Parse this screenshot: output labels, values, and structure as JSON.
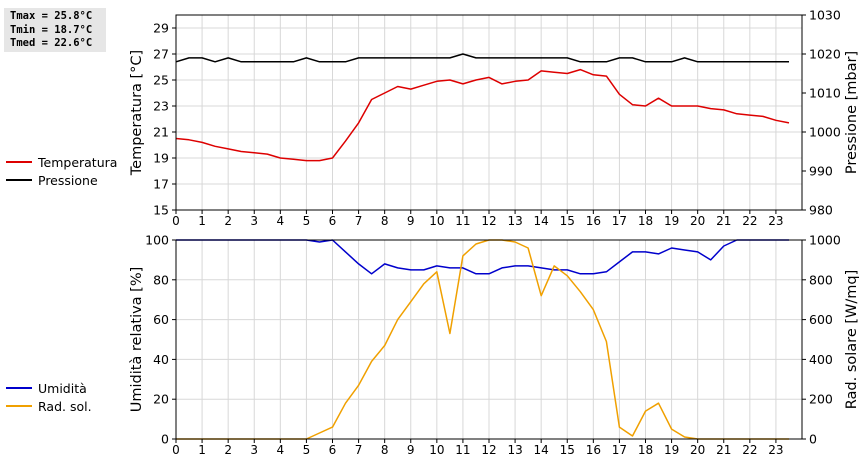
{
  "stats": {
    "tmax": "Tmax = 25.8°C",
    "tmin": "Tmin = 18.7°C",
    "tmed": "Tmed = 22.6°C"
  },
  "legend_top": [
    {
      "label": "Temperatura",
      "color": "#dd0000"
    },
    {
      "label": "Pressione",
      "color": "#000000"
    }
  ],
  "legend_bottom": [
    {
      "label": "Umidità",
      "color": "#0000cc"
    },
    {
      "label": "Rad. sol.",
      "color": "#f0a000"
    }
  ],
  "chart_data": [
    {
      "type": "line",
      "ylabel": "Temperatura [°C]",
      "ylabel_right": "Pressione [mbar]",
      "xlim": [
        0,
        24
      ],
      "ylim": [
        15,
        30
      ],
      "ylim_right": [
        980,
        1030
      ],
      "xticks": [
        0,
        1,
        2,
        3,
        4,
        5,
        6,
        7,
        8,
        9,
        10,
        11,
        12,
        13,
        14,
        15,
        16,
        17,
        18,
        19,
        20,
        21,
        22,
        23
      ],
      "yticks": [
        15,
        17,
        19,
        21,
        23,
        25,
        27,
        29
      ],
      "yticks_right": [
        980,
        990,
        1000,
        1010,
        1020,
        1030
      ],
      "grid": true,
      "series": [
        {
          "name": "Temperatura",
          "axis": "left",
          "color": "#dd0000",
          "x": [
            0,
            0.5,
            1,
            1.5,
            2,
            2.5,
            3,
            3.5,
            4,
            4.5,
            5,
            5.5,
            6,
            6.5,
            7,
            7.5,
            8,
            8.5,
            9,
            9.5,
            10,
            10.5,
            11,
            11.5,
            12,
            12.5,
            13,
            13.5,
            14,
            14.5,
            15,
            15.5,
            16,
            16.5,
            17,
            17.5,
            18,
            18.5,
            19,
            19.5,
            20,
            20.5,
            21,
            21.5,
            22,
            22.5,
            23,
            23.5
          ],
          "y": [
            20.5,
            20.4,
            20.2,
            19.9,
            19.7,
            19.5,
            19.4,
            19.3,
            19.0,
            18.9,
            18.8,
            18.8,
            19.0,
            20.3,
            21.7,
            23.5,
            24.0,
            24.5,
            24.3,
            24.6,
            24.9,
            25.0,
            24.7,
            25.0,
            25.2,
            24.7,
            24.9,
            25.0,
            25.7,
            25.6,
            25.5,
            25.8,
            25.4,
            25.3,
            23.9,
            23.1,
            23.0,
            23.6,
            23.0,
            23.0,
            23.0,
            22.8,
            22.7,
            22.4,
            22.3,
            22.2,
            21.9,
            21.7
          ]
        },
        {
          "name": "Pressione",
          "axis": "right",
          "color": "#000000",
          "x": [
            0,
            0.5,
            1,
            1.5,
            2,
            2.5,
            3,
            3.5,
            4,
            4.5,
            5,
            5.5,
            6,
            6.5,
            7,
            7.5,
            8,
            8.5,
            9,
            9.5,
            10,
            10.5,
            11,
            11.5,
            12,
            12.5,
            13,
            13.5,
            14,
            14.5,
            15,
            15.5,
            16,
            16.5,
            17,
            17.5,
            18,
            18.5,
            19,
            19.5,
            20,
            20.5,
            21,
            21.5,
            22,
            22.5,
            23,
            23.5
          ],
          "y": [
            1018,
            1019,
            1019,
            1018,
            1019,
            1018,
            1018,
            1018,
            1018,
            1018,
            1019,
            1018,
            1018,
            1018,
            1019,
            1019,
            1019,
            1019,
            1019,
            1019,
            1019,
            1019,
            1020,
            1019,
            1019,
            1019,
            1019,
            1019,
            1019,
            1019,
            1019,
            1018,
            1018,
            1018,
            1019,
            1019,
            1018,
            1018,
            1018,
            1019,
            1018,
            1018,
            1018,
            1018,
            1018,
            1018,
            1018,
            1018
          ]
        }
      ]
    },
    {
      "type": "line",
      "ylabel": "Umidità relativa [%]",
      "ylabel_right": "Rad. solare [W/mq]",
      "xlim": [
        0,
        24
      ],
      "ylim": [
        0,
        100
      ],
      "ylim_right": [
        0,
        1000
      ],
      "xticks": [
        0,
        1,
        2,
        3,
        4,
        5,
        6,
        7,
        8,
        9,
        10,
        11,
        12,
        13,
        14,
        15,
        16,
        17,
        18,
        19,
        20,
        21,
        22,
        23
      ],
      "yticks": [
        0,
        20,
        40,
        60,
        80,
        100
      ],
      "yticks_right": [
        0,
        200,
        400,
        600,
        800,
        1000
      ],
      "grid": true,
      "series": [
        {
          "name": "Umidità",
          "axis": "left",
          "color": "#0000cc",
          "x": [
            0,
            0.5,
            1,
            1.5,
            2,
            2.5,
            3,
            3.5,
            4,
            4.5,
            5,
            5.5,
            6,
            6.5,
            7,
            7.5,
            8,
            8.5,
            9,
            9.5,
            10,
            10.5,
            11,
            11.5,
            12,
            12.5,
            13,
            13.5,
            14,
            14.5,
            15,
            15.5,
            16,
            16.5,
            17,
            17.5,
            18,
            18.5,
            19,
            19.5,
            20,
            20.5,
            21,
            21.5,
            22,
            22.5,
            23,
            23.5
          ],
          "y": [
            100,
            100,
            100,
            100,
            100,
            100,
            100,
            100,
            100,
            100,
            100,
            99,
            100,
            94,
            88,
            83,
            88,
            86,
            85,
            85,
            87,
            86,
            86,
            83,
            83,
            86,
            87,
            87,
            86,
            85,
            85,
            83,
            83,
            84,
            89,
            94,
            94,
            93,
            96,
            95,
            94,
            90,
            97,
            100,
            100,
            100,
            100,
            100
          ]
        },
        {
          "name": "Rad. sol.",
          "axis": "right",
          "color": "#f0a000",
          "x": [
            0,
            0.5,
            1,
            1.5,
            2,
            2.5,
            3,
            3.5,
            4,
            4.5,
            5,
            5.5,
            6,
            6.5,
            7,
            7.5,
            8,
            8.5,
            9,
            9.5,
            10,
            10.5,
            11,
            11.5,
            12,
            12.5,
            13,
            13.5,
            14,
            14.5,
            15,
            15.5,
            16,
            16.5,
            17,
            17.5,
            18,
            18.5,
            19,
            19.5,
            20,
            20.5,
            21,
            21.5,
            22,
            22.5,
            23,
            23.5
          ],
          "y": [
            0,
            0,
            0,
            0,
            0,
            0,
            0,
            0,
            0,
            0,
            0,
            30,
            60,
            180,
            270,
            390,
            470,
            600,
            690,
            780,
            840,
            530,
            920,
            980,
            1000,
            1000,
            990,
            960,
            720,
            870,
            820,
            740,
            650,
            490,
            60,
            15,
            140,
            180,
            50,
            10,
            0,
            0,
            0,
            0,
            0,
            0,
            0,
            0
          ]
        }
      ]
    }
  ]
}
